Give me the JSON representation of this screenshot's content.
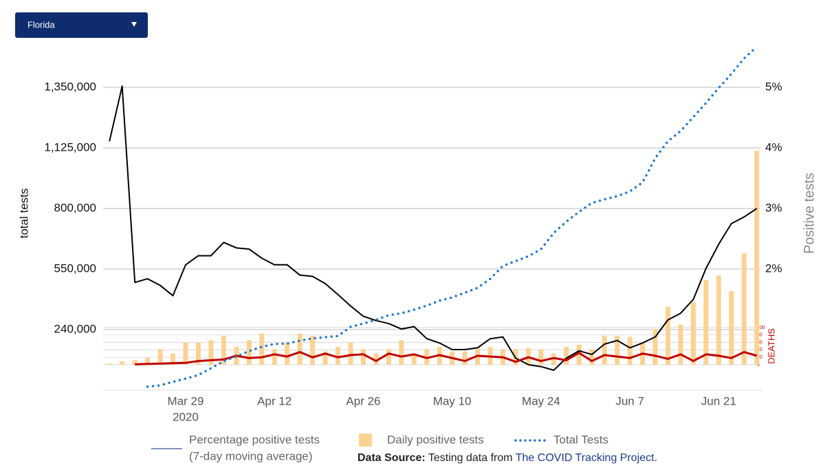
{
  "dropdown": {
    "selected": "Florida"
  },
  "chart_data": {
    "type": "combo",
    "x": [
      "2020-03-17",
      "2020-03-19",
      "2020-03-21",
      "2020-03-23",
      "2020-03-25",
      "2020-03-27",
      "2020-03-29",
      "2020-03-31",
      "2020-04-02",
      "2020-04-04",
      "2020-04-06",
      "2020-04-08",
      "2020-04-10",
      "2020-04-12",
      "2020-04-14",
      "2020-04-16",
      "2020-04-18",
      "2020-04-20",
      "2020-04-22",
      "2020-04-24",
      "2020-04-26",
      "2020-04-28",
      "2020-04-30",
      "2020-05-02",
      "2020-05-04",
      "2020-05-06",
      "2020-05-08",
      "2020-05-10",
      "2020-05-12",
      "2020-05-14",
      "2020-05-16",
      "2020-05-18",
      "2020-05-20",
      "2020-05-22",
      "2020-05-24",
      "2020-05-26",
      "2020-05-28",
      "2020-05-30",
      "2020-06-01",
      "2020-06-03",
      "2020-06-05",
      "2020-06-07",
      "2020-06-09",
      "2020-06-11",
      "2020-06-13",
      "2020-06-15",
      "2020-06-17",
      "2020-06-19",
      "2020-06-21",
      "2020-06-23",
      "2020-06-25",
      "2020-06-27"
    ],
    "xlim": [
      "2020-03-16",
      "2020-06-28"
    ],
    "xticks": [
      {
        "value": "2020-03-29",
        "label": "Mar 29"
      },
      {
        "value": "2020-04-12",
        "label": "Apr 12"
      },
      {
        "value": "2020-04-26",
        "label": "Apr 26"
      },
      {
        "value": "2020-05-10",
        "label": "May 10"
      },
      {
        "value": "2020-05-24",
        "label": "May 24"
      },
      {
        "value": "2020-06-07",
        "label": "Jun 7"
      },
      {
        "value": "2020-06-21",
        "label": "Jun 21"
      }
    ],
    "x_year_label": "2020",
    "y_label": "total tests",
    "y_scale": "piecewise",
    "ylim": [
      0,
      1575000
    ],
    "yticks": [
      {
        "value": 240000,
        "label": "240,000"
      },
      {
        "value": 550000,
        "label": "550,000"
      },
      {
        "value": 800000,
        "label": "800,000"
      },
      {
        "value": 1125000,
        "label": "1,125,000"
      },
      {
        "value": 1350000,
        "label": "1,350,000"
      }
    ],
    "y2_label": "Positive tests",
    "y2lim": [
      0,
      6
    ],
    "y2ticks": [
      {
        "value": 2,
        "label": "2%"
      },
      {
        "value": 3,
        "label": "3%"
      },
      {
        "value": 4,
        "label": "4%"
      },
      {
        "value": 5,
        "label": "5%"
      }
    ],
    "bar_ylim": [
      0,
      10000
    ],
    "deaths_ylim": [
      0,
      100
    ],
    "deaths_yticks": [
      0,
      20,
      40,
      60,
      80,
      100
    ],
    "grid": true,
    "series": [
      {
        "name": "Percentage positive tests",
        "legend_note": "(7-day moving average)",
        "type": "line",
        "axis": "y2",
        "color": "#000000",
        "legend_color": "#7f93bd",
        "values": [
          4.11,
          5.02,
          1.78,
          1.84,
          1.73,
          1.56,
          2.07,
          2.22,
          2.22,
          2.44,
          2.35,
          2.33,
          2.18,
          2.07,
          2.07,
          1.9,
          1.88,
          1.76,
          1.58,
          1.39,
          1.22,
          1.15,
          1.1,
          1.01,
          1.05,
          0.85,
          0.78,
          0.67,
          0.67,
          0.7,
          0.85,
          0.88,
          0.53,
          0.42,
          0.39,
          0.33,
          0.53,
          0.65,
          0.59,
          0.76,
          0.82,
          0.7,
          0.78,
          0.88,
          1.16,
          1.27,
          1.5,
          2.01,
          2.41,
          2.75,
          2.86,
          3.0
        ]
      },
      {
        "name": "Daily positive tests",
        "type": "bar",
        "axis": "bar",
        "color": "#fcd293",
        "values": [
          50,
          150,
          200,
          300,
          700,
          500,
          1000,
          1000,
          1100,
          1300,
          800,
          1100,
          1400,
          700,
          1000,
          1400,
          1300,
          600,
          800,
          1000,
          700,
          500,
          700,
          1100,
          500,
          700,
          800,
          600,
          600,
          700,
          800,
          700,
          700,
          750,
          700,
          500,
          800,
          900,
          700,
          1300,
          1300,
          1250,
          1000,
          1600,
          2600,
          1800,
          2800,
          3800,
          4000,
          3300,
          5000,
          9600
        ]
      },
      {
        "name": "Total Tests",
        "type": "dotted-line",
        "axis": "y",
        "color": "#1f78d1",
        "values": [
          null,
          null,
          null,
          13600,
          19000,
          33000,
          46000,
          60000,
          87000,
          115000,
          134000,
          155000,
          172000,
          183000,
          185000,
          196000,
          205000,
          210000,
          215000,
          254000,
          271000,
          290000,
          314000,
          324000,
          342000,
          363000,
          388000,
          405000,
          429000,
          454000,
          500000,
          563000,
          583000,
          603000,
          632000,
          699000,
          746000,
          786000,
          830000,
          849000,
          866000,
          892000,
          940000,
          1070000,
          1150000,
          1188000,
          1240000,
          1292000,
          1348000,
          1400000,
          1458000,
          1501000
        ]
      },
      {
        "name": "DEATHS",
        "type": "line",
        "axis": "deaths",
        "color": "#c00000",
        "values": [
          null,
          null,
          1,
          2,
          3,
          4,
          5,
          10,
          12,
          14,
          24,
          18,
          20,
          28,
          22,
          34,
          20,
          30,
          20,
          26,
          28,
          10,
          30,
          22,
          28,
          18,
          26,
          18,
          10,
          24,
          22,
          20,
          8,
          20,
          10,
          18,
          12,
          32,
          10,
          26,
          22,
          18,
          30,
          24,
          16,
          28,
          10,
          28,
          24,
          18,
          34,
          24
        ]
      }
    ]
  },
  "source": {
    "label": "Data Source:",
    "text": "Testing data from",
    "link": "The COVID Tracking Project",
    "end": "."
  }
}
